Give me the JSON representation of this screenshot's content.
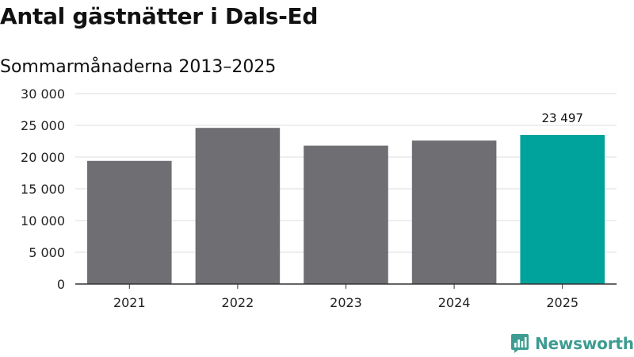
{
  "header": {
    "title": "Antal gästnätter i Dals-Ed",
    "subtitle": "Sommarmånaderna 2013–2025"
  },
  "brand": {
    "name": "Newsworthy",
    "icon": "newsworthy-logo-icon"
  },
  "colors": {
    "bar_default": "#6e6e73",
    "bar_highlight": "#00a39b",
    "gridline": "#dddddd",
    "axis": "#333333",
    "brand": "#3d9c91"
  },
  "chart_data": {
    "type": "bar",
    "categories": [
      "2021",
      "2022",
      "2023",
      "2024",
      "2025"
    ],
    "values": [
      19400,
      24600,
      21800,
      22600,
      23497
    ],
    "highlight_index": 4,
    "data_labels": [
      {
        "index": 4,
        "text": "23 497"
      }
    ],
    "title": "Antal gästnätter i Dals-Ed",
    "subtitle": "Sommarmånaderna 2013–2025",
    "xlabel": "",
    "ylabel": "",
    "ylim": [
      0,
      30000
    ],
    "yticks": [
      0,
      5000,
      10000,
      15000,
      20000,
      25000,
      30000
    ],
    "ytick_labels": [
      "0",
      "5 000",
      "10 000",
      "15 000",
      "20 000",
      "25 000",
      "30 000"
    ],
    "grid": true,
    "legend": "none"
  }
}
